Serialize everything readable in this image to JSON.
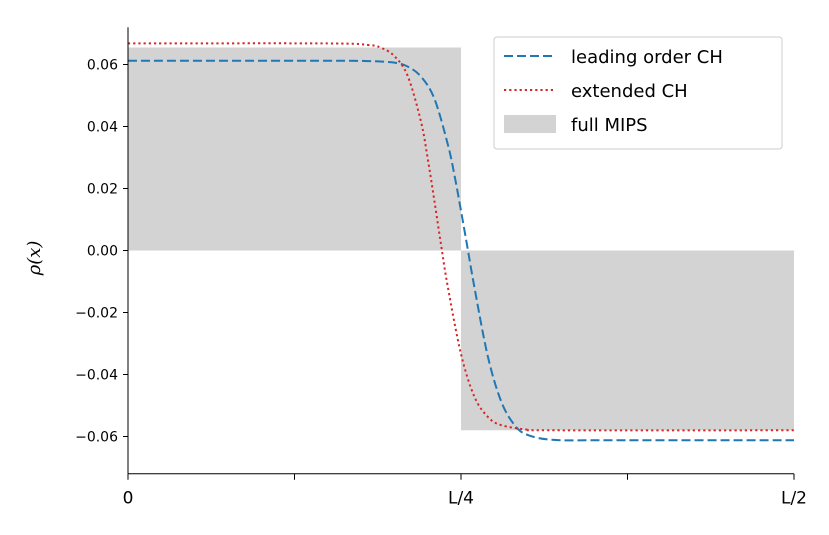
{
  "chart_data": {
    "type": "line",
    "title": "",
    "ylabel": "ρ(x)",
    "xlabel": "",
    "xlim": [
      0,
      0.5
    ],
    "ylim": [
      -0.072,
      0.072
    ],
    "x_ticks": [
      {
        "value": 0,
        "label": "0"
      },
      {
        "value": 0.125,
        "label": ""
      },
      {
        "value": 0.25,
        "label": "L/4"
      },
      {
        "value": 0.375,
        "label": ""
      },
      {
        "value": 0.5,
        "label": "L/2"
      }
    ],
    "y_ticks": [
      {
        "value": 0.06,
        "label": "0.06"
      },
      {
        "value": 0.04,
        "label": "0.04"
      },
      {
        "value": 0.02,
        "label": "0.02"
      },
      {
        "value": 0.0,
        "label": "0.00"
      },
      {
        "value": -0.02,
        "label": "−0.02"
      },
      {
        "value": -0.04,
        "label": "−0.04"
      },
      {
        "value": -0.06,
        "label": "−0.06"
      }
    ],
    "grid": false,
    "legend_position": "upper-right",
    "series": [
      {
        "name": "leading order CH",
        "style": "dashed",
        "color": "#1f77b4",
        "x": [
          0,
          0.15,
          0.18,
          0.2,
          0.21,
          0.22,
          0.23,
          0.24,
          0.245,
          0.25,
          0.255,
          0.26,
          0.27,
          0.28,
          0.29,
          0.3,
          0.32,
          0.36,
          0.5
        ],
        "y": [
          0.0612,
          0.0612,
          0.0611,
          0.0606,
          0.0593,
          0.0561,
          0.049,
          0.0344,
          0.0245,
          0.0128,
          0.0006,
          -0.0117,
          -0.0339,
          -0.0485,
          -0.0562,
          -0.0595,
          -0.0611,
          -0.0612,
          -0.0612
        ]
      },
      {
        "name": "extended CH",
        "style": "dotted",
        "color": "#d62728",
        "x": [
          0,
          0.15,
          0.18,
          0.19,
          0.2,
          0.21,
          0.22,
          0.225,
          0.23,
          0.235,
          0.24,
          0.25,
          0.26,
          0.27,
          0.28,
          0.3,
          0.32,
          0.5
        ],
        "y": [
          0.0668,
          0.0668,
          0.0663,
          0.0654,
          0.0627,
          0.0563,
          0.0415,
          0.0297,
          0.0161,
          0.0019,
          -0.0115,
          -0.0334,
          -0.0471,
          -0.0536,
          -0.0563,
          -0.0578,
          -0.058,
          -0.058
        ]
      }
    ],
    "shaded": {
      "name": "full MIPS",
      "color": "#d3d3d3",
      "x": [
        0,
        0.25,
        0.25,
        0.5
      ],
      "y": [
        0.0655,
        0.0655,
        -0.058,
        -0.058
      ]
    }
  }
}
